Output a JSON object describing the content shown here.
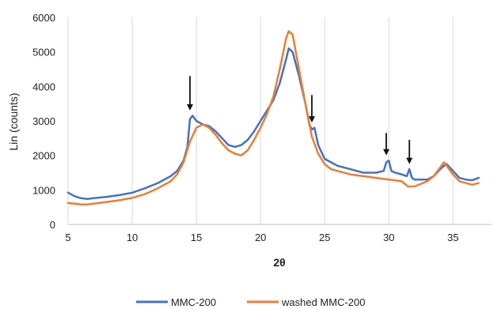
{
  "chart_data": {
    "type": "line",
    "xlabel": "2θ",
    "ylabel": "Lin (counts)",
    "xlim": [
      5,
      38
    ],
    "ylim": [
      0,
      6000
    ],
    "xticks": [
      5,
      10,
      15,
      20,
      25,
      30,
      35
    ],
    "yticks": [
      0,
      1000,
      2000,
      3000,
      4000,
      5000,
      6000
    ],
    "grid": "vertical",
    "legend_position": "bottom",
    "series": [
      {
        "name": "MMC-200",
        "color": "#4472C4",
        "x": [
          5,
          5.5,
          6,
          6.5,
          7,
          8,
          9,
          10,
          11,
          12,
          13,
          13.5,
          14,
          14.3,
          14.5,
          14.7,
          15,
          15.5,
          16,
          16.5,
          17,
          17.5,
          18,
          18.5,
          19,
          19.5,
          20,
          20.5,
          21,
          21.5,
          22,
          22.2,
          22.5,
          23,
          23.5,
          23.8,
          24,
          24.2,
          24.5,
          25,
          25.5,
          26,
          27,
          28,
          29,
          29.6,
          29.8,
          30,
          30.2,
          30.5,
          31,
          31.4,
          31.6,
          31.8,
          32,
          33,
          33.5,
          34,
          34.3,
          34.5,
          35,
          35.5,
          36,
          36.5,
          37
        ],
        "values": [
          920,
          820,
          760,
          740,
          760,
          800,
          850,
          920,
          1050,
          1200,
          1400,
          1550,
          1850,
          2250,
          3050,
          3150,
          3000,
          2900,
          2850,
          2700,
          2500,
          2300,
          2250,
          2300,
          2450,
          2700,
          3000,
          3300,
          3600,
          4100,
          4800,
          5100,
          5000,
          4300,
          3500,
          2900,
          2750,
          2800,
          2300,
          1900,
          1800,
          1700,
          1600,
          1500,
          1500,
          1550,
          1800,
          1850,
          1550,
          1500,
          1450,
          1400,
          1600,
          1350,
          1300,
          1300,
          1400,
          1600,
          1700,
          1750,
          1550,
          1350,
          1300,
          1280,
          1350
        ]
      },
      {
        "name": "washed MMC-200",
        "color": "#ED7D31",
        "x": [
          5,
          5.5,
          6,
          6.5,
          7,
          8,
          9,
          10,
          11,
          12,
          13,
          13.5,
          14,
          14.5,
          15,
          15.5,
          16,
          16.5,
          17,
          17.5,
          18,
          18.5,
          19,
          19.5,
          20,
          20.5,
          21,
          21.5,
          22,
          22.2,
          22.5,
          23,
          23.5,
          24,
          24.5,
          25,
          25.5,
          26,
          27,
          28,
          29,
          30,
          31,
          31.5,
          32,
          33,
          33.5,
          34,
          34.3,
          34.5,
          35,
          35.5,
          36,
          36.5,
          37
        ],
        "values": [
          620,
          600,
          580,
          580,
          600,
          650,
          700,
          770,
          880,
          1050,
          1250,
          1450,
          1800,
          2400,
          2800,
          2900,
          2800,
          2600,
          2350,
          2150,
          2050,
          2000,
          2150,
          2450,
          2800,
          3200,
          3700,
          4500,
          5400,
          5600,
          5500,
          4500,
          3500,
          2550,
          2050,
          1750,
          1600,
          1550,
          1450,
          1400,
          1350,
          1300,
          1250,
          1100,
          1100,
          1250,
          1400,
          1650,
          1800,
          1700,
          1450,
          1250,
          1200,
          1150,
          1200
        ]
      }
    ],
    "annotations": [
      {
        "type": "arrow",
        "x": 14.5,
        "y_tail": 4300,
        "y_head": 3300
      },
      {
        "type": "arrow",
        "x": 24.0,
        "y_tail": 3750,
        "y_head": 2950
      },
      {
        "type": "arrow",
        "x": 29.8,
        "y_tail": 2650,
        "y_head": 2000
      },
      {
        "type": "arrow",
        "x": 31.6,
        "y_tail": 2450,
        "y_head": 1750
      }
    ]
  }
}
